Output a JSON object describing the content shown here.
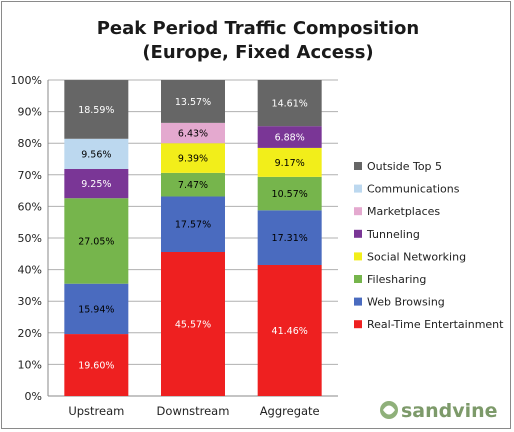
{
  "chart_data": {
    "type": "bar",
    "stacked": true,
    "title_lines": [
      "Peak Period Traffic Composition",
      "(Europe, Fixed Access)"
    ],
    "categories": [
      "Upstream",
      "Downstream",
      "Aggregate"
    ],
    "ylim": [
      0,
      100
    ],
    "y_ticks": [
      "0%",
      "10%",
      "20%",
      "30%",
      "40%",
      "50%",
      "60%",
      "70%",
      "80%",
      "90%",
      "100%"
    ],
    "grid": true,
    "legend_position": "right",
    "series": [
      {
        "name": "Real-Time Entertainment",
        "color": "#ee2020",
        "label_color": "#ffffff",
        "values": [
          19.6,
          45.57,
          41.46
        ],
        "labels": [
          "19.60%",
          "45.57%",
          "41.46%"
        ]
      },
      {
        "name": "Web Browsing",
        "color": "#4a6bbf",
        "label_color": "#000000",
        "values": [
          15.94,
          17.57,
          17.31
        ],
        "labels": [
          "15.94%",
          "17.57%",
          "17.31%"
        ]
      },
      {
        "name": "Filesharing",
        "color": "#76b54c",
        "label_color": "#000000",
        "values": [
          27.05,
          7.47,
          10.57
        ],
        "labels": [
          "27.05%",
          "7.47%",
          "10.57%"
        ]
      },
      {
        "name": "Social Networking",
        "color": "#f2ee1a",
        "label_color": "#000000",
        "values": [
          0,
          9.39,
          9.17
        ],
        "labels": [
          "",
          "9.39%",
          "9.17%"
        ]
      },
      {
        "name": "Tunneling",
        "color": "#7a3696",
        "label_color": "#ffffff",
        "values": [
          9.25,
          0,
          6.88
        ],
        "labels": [
          "9.25%",
          "",
          "6.88%"
        ]
      },
      {
        "name": "Marketplaces",
        "color": "#e4a9cf",
        "label_color": "#000000",
        "values": [
          0,
          6.43,
          0
        ],
        "labels": [
          "",
          "6.43%",
          ""
        ]
      },
      {
        "name": "Communications",
        "color": "#bcd8ef",
        "label_color": "#000000",
        "values": [
          9.56,
          0,
          0
        ],
        "labels": [
          "9.56%",
          "",
          ""
        ]
      },
      {
        "name": "Outside Top 5",
        "color": "#666666",
        "label_color": "#ffffff",
        "values": [
          18.59,
          13.57,
          14.61
        ],
        "labels": [
          "18.59%",
          "13.57%",
          "14.61%"
        ]
      }
    ],
    "logo_text": "sandvine"
  }
}
